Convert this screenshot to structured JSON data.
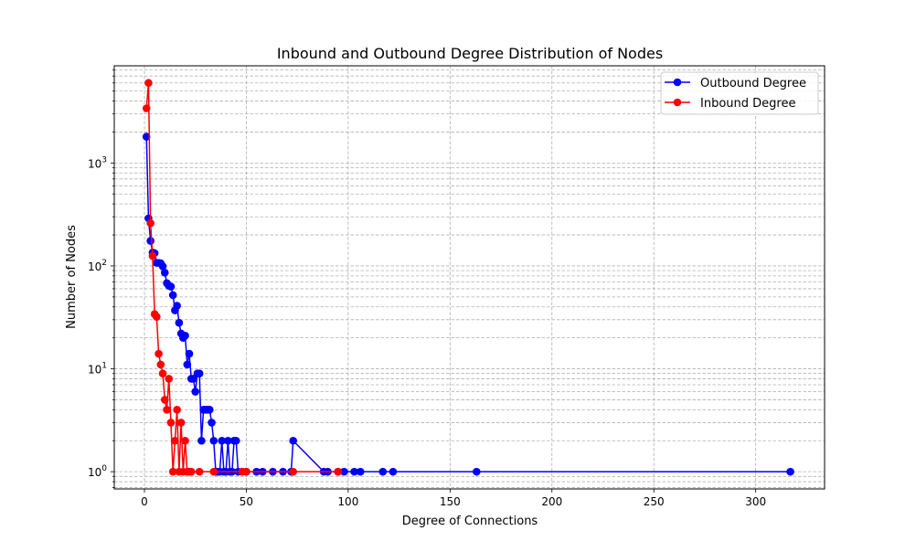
{
  "chart_data": {
    "type": "line",
    "title": "Inbound and Outbound Degree Distribution of Nodes",
    "xlabel": "Degree of Connections",
    "ylabel": "Number of Nodes",
    "xlim": [
      -14.8,
      333.8
    ],
    "ylim": [
      0.68,
      8800
    ],
    "yscale": "log",
    "grid": true,
    "legend_position": "top-right",
    "x_ticks": [
      0,
      50,
      100,
      150,
      200,
      250,
      300
    ],
    "x_tick_labels": [
      "0",
      "50",
      "100",
      "150",
      "200",
      "250",
      "300"
    ],
    "y_ticks": [
      1,
      10,
      100,
      1000
    ],
    "y_tick_labels": [
      {
        "base": "10",
        "exp": "0"
      },
      {
        "base": "10",
        "exp": "1"
      },
      {
        "base": "10",
        "exp": "2"
      },
      {
        "base": "10",
        "exp": "3"
      }
    ],
    "series": [
      {
        "name": "Outbound Degree",
        "color": "#0000ff",
        "x": [
          1,
          2,
          3,
          4,
          5,
          6,
          7,
          8,
          9,
          10,
          11,
          12,
          13,
          14,
          15,
          16,
          17,
          18,
          19,
          20,
          21,
          22,
          23,
          24,
          25,
          26,
          27,
          28,
          29,
          30,
          31,
          32,
          33,
          34,
          35,
          36,
          37,
          38,
          39,
          40,
          41,
          42,
          43,
          44,
          45,
          46,
          48,
          50,
          55,
          58,
          63,
          68,
          72,
          73,
          88,
          90,
          95,
          98,
          103,
          106,
          117,
          122,
          163,
          317
        ],
        "y": [
          1800,
          290,
          175,
          135,
          133,
          107,
          107,
          106,
          99,
          86,
          68,
          64,
          63,
          52,
          37,
          41,
          28,
          22,
          20,
          21,
          11,
          14,
          8,
          8,
          6,
          9,
          9,
          2,
          4,
          4,
          4,
          4,
          3,
          2,
          1,
          1,
          1,
          2,
          1,
          1,
          2,
          1,
          1,
          2,
          2,
          1,
          1,
          1,
          1,
          1,
          1,
          1,
          1,
          2,
          1,
          1,
          1,
          1,
          1,
          1,
          1,
          1,
          1,
          1
        ]
      },
      {
        "name": "Inbound Degree",
        "color": "#ff0000",
        "x": [
          1,
          2,
          3,
          4,
          5,
          6,
          7,
          8,
          9,
          10,
          11,
          12,
          13,
          14,
          15,
          16,
          17,
          18,
          19,
          20,
          21,
          22,
          23,
          27,
          34,
          48,
          50,
          73,
          95
        ],
        "y": [
          3400,
          6000,
          260,
          125,
          34,
          32,
          14,
          11,
          9,
          5,
          4,
          8,
          3,
          1,
          2,
          4,
          1,
          3,
          1,
          2,
          1,
          1,
          1,
          1,
          1,
          1,
          1,
          1,
          1
        ]
      }
    ]
  }
}
